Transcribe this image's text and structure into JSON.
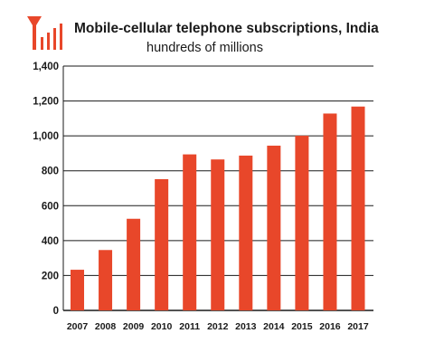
{
  "chart_data": {
    "type": "bar",
    "title": "Mobile-cellular telephone subscriptions, India",
    "subtitle": "hundreds of millions",
    "categories": [
      "2007",
      "2008",
      "2009",
      "2010",
      "2011",
      "2012",
      "2013",
      "2014",
      "2015",
      "2016",
      "2017"
    ],
    "values": [
      233,
      346,
      525,
      752,
      894,
      865,
      887,
      944,
      1001,
      1128,
      1168
    ],
    "ylim": [
      0,
      1400
    ],
    "yticks": [
      0,
      200,
      400,
      600,
      800,
      1000,
      1200,
      1400
    ],
    "ytick_labels": [
      "0",
      "200",
      "400",
      "600",
      "800",
      "1,000",
      "1,200",
      "1,400"
    ],
    "grid": true,
    "legend": "none",
    "colors": {
      "bar": "#e8472a",
      "logo": "#e8472a",
      "grid": "#1a1a1a",
      "text": "#1a1a1a"
    },
    "logo_icon": "signal-bars-icon"
  }
}
